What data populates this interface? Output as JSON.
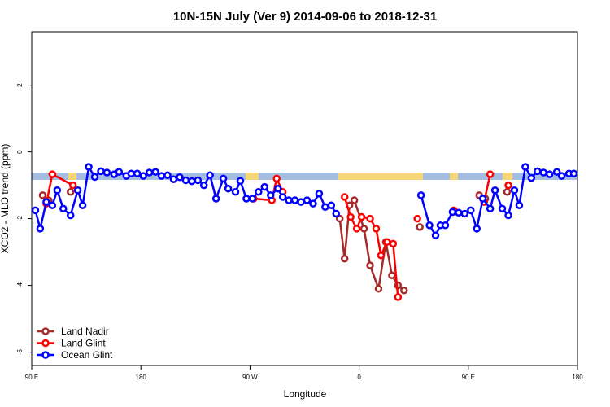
{
  "chart_data": {
    "type": "line",
    "title": "10N-15N July (Ver 9)   2014-09-06 to 2018-12-31",
    "x_label": "Longitude",
    "y_label": "XCO2 - MLO trend (ppm)",
    "xlim": [
      90,
      540
    ],
    "xticks": [
      {
        "value": 90,
        "label": "90 E"
      },
      180,
      {
        "value": 270,
        "label": "90 W"
      },
      {
        "value": 360,
        "label": "0"
      },
      {
        "value": 450,
        "label": "90 E"
      },
      {
        "value": 540,
        "label": "180"
      }
    ],
    "ylim": [
      -6.4,
      3.6
    ],
    "yticks": [
      -6,
      -4,
      -2,
      0,
      2
    ],
    "legend": "bottom-left",
    "series": [
      {
        "name": "Land Nadir",
        "color": "#a52a2a",
        "x": [
          99,
          104,
          113,
          122,
          200,
          344,
          348,
          352,
          356,
          364,
          369,
          376,
          382,
          387,
          392,
          397,
          405,
          410,
          450,
          459,
          464,
          480,
          482
        ],
        "values": [
          -1.3,
          -1.45,
          null,
          -1.2,
          null,
          -2.0,
          -3.2,
          -1.6,
          -1.45,
          -2.3,
          -3.4,
          -4.1,
          -2.7,
          -3.7,
          -4.0,
          -4.15,
          null,
          -2.25,
          null,
          -1.3,
          -1.4,
          null,
          -1.2
        ]
      },
      {
        "name": "Land Glint",
        "color": "#ff0000",
        "x": [
          102,
          107,
          124,
          200,
          273,
          288,
          292,
          297,
          320,
          348,
          353,
          358,
          362,
          369,
          374,
          378,
          383,
          388,
          392,
          400,
          408,
          420,
          438,
          450,
          463,
          468,
          475,
          483
        ],
        "values": [
          -1.55,
          -0.67,
          -1.0,
          null,
          -1.4,
          -1.45,
          -0.8,
          -1.2,
          null,
          -1.35,
          -1.95,
          -2.3,
          -1.95,
          -2.0,
          -2.3,
          -3.1,
          -2.7,
          -2.75,
          -4.35,
          null,
          -2.0,
          null,
          -1.75,
          null,
          -1.5,
          -0.67,
          null,
          -1.0
        ]
      },
      {
        "name": "Ocean Glint",
        "color": "#0000ff",
        "x": [
          93,
          97,
          102,
          107,
          111,
          116,
          122,
          128,
          132,
          137,
          142,
          147,
          152,
          158,
          162,
          168,
          172,
          177,
          182,
          187,
          192,
          197,
          202,
          207,
          212,
          217,
          222,
          227,
          232,
          237,
          242,
          248,
          252,
          258,
          262,
          267,
          272,
          277,
          282,
          287,
          293,
          297,
          302,
          307,
          312,
          317,
          322,
          327,
          332,
          337,
          341,
          380,
          411,
          418,
          423,
          427,
          431,
          437,
          442,
          447,
          452,
          457,
          462,
          468,
          472,
          478,
          483,
          488,
          492,
          497,
          502,
          507,
          512,
          517,
          523,
          527,
          533,
          537
        ],
        "values": [
          -1.75,
          -2.3,
          -1.5,
          -1.6,
          -1.15,
          -1.7,
          -1.9,
          -1.15,
          -1.6,
          -0.45,
          -0.75,
          -0.58,
          -0.62,
          -0.67,
          -0.6,
          -0.72,
          -0.65,
          -0.65,
          -0.72,
          -0.62,
          -0.6,
          -0.72,
          -0.7,
          -0.82,
          -0.76,
          -0.85,
          -0.88,
          -0.85,
          -1.0,
          -0.7,
          -1.4,
          -0.8,
          -1.1,
          -1.2,
          -0.87,
          -1.4,
          -1.4,
          -1.2,
          -1.05,
          -1.3,
          -1.1,
          -1.35,
          -1.45,
          -1.45,
          -1.5,
          -1.45,
          -1.55,
          -1.25,
          -1.65,
          -1.6,
          -1.85,
          null,
          -1.3,
          -2.2,
          -2.5,
          -2.2,
          -2.2,
          -1.8,
          -1.82,
          -1.85,
          -1.75,
          -2.3,
          -1.4,
          -1.7,
          -1.15,
          -1.7,
          -1.9,
          -1.15,
          -1.6,
          -0.45,
          -0.78,
          -0.58,
          -0.62,
          -0.67,
          -0.6,
          -0.72,
          -0.65,
          -0.65
        ]
      }
    ]
  }
}
